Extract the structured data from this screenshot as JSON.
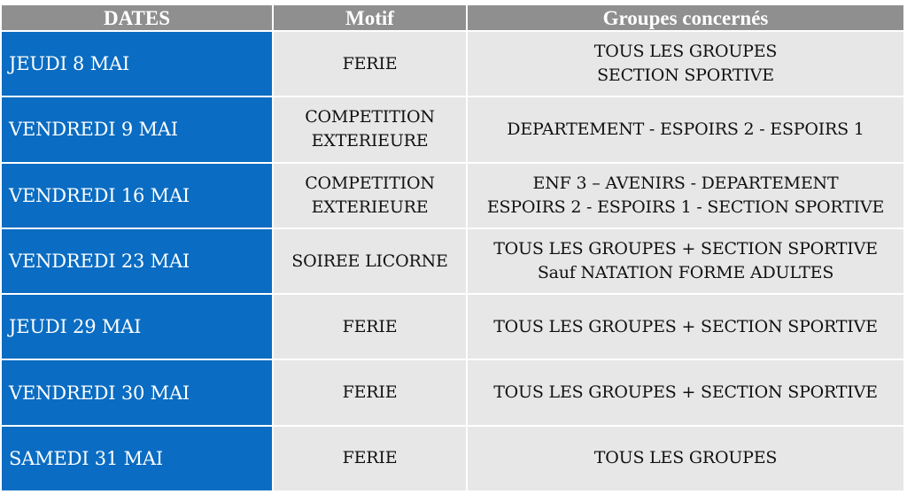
{
  "headers": {
    "dates": "DATES",
    "motif": "Motif",
    "groupes": "Groupes concernés"
  },
  "rows": [
    {
      "date": "JEUDI 8 MAI",
      "motif": [
        "FERIE"
      ],
      "groupes": [
        "TOUS LES GROUPES",
        "SECTION SPORTIVE"
      ]
    },
    {
      "date": "VENDREDI 9 MAI",
      "motif": [
        "COMPETITION",
        "EXTERIEURE"
      ],
      "groupes": [
        "DEPARTEMENT - ESPOIRS 2 - ESPOIRS 1"
      ]
    },
    {
      "date": "VENDREDI 16 MAI",
      "motif": [
        "COMPETITION",
        "EXTERIEURE"
      ],
      "groupes": [
        "ENF 3 – AVENIRS - DEPARTEMENT",
        "ESPOIRS 2 - ESPOIRS 1 - SECTION SPORTIVE"
      ]
    },
    {
      "date": "VENDREDI 23 MAI",
      "motif": [
        "SOIREE LICORNE"
      ],
      "groupes": [
        "TOUS LES GROUPES + SECTION SPORTIVE",
        "Sauf NATATION FORME ADULTES"
      ]
    },
    {
      "date": "JEUDI 29 MAI",
      "motif": [
        "FERIE"
      ],
      "groupes": [
        "TOUS LES GROUPES + SECTION SPORTIVE"
      ]
    },
    {
      "date": "VENDREDI 30 MAI",
      "motif": [
        "FERIE"
      ],
      "groupes": [
        "TOUS LES GROUPES + SECTION SPORTIVE"
      ]
    },
    {
      "date": "SAMEDI 31 MAI",
      "motif": [
        "FERIE"
      ],
      "groupes": [
        "TOUS LES GROUPES"
      ]
    }
  ],
  "colors": {
    "header_bg": "#8f8f8f",
    "date_bg": "#0a6cc2",
    "cell_bg": "#e7e7e7"
  }
}
